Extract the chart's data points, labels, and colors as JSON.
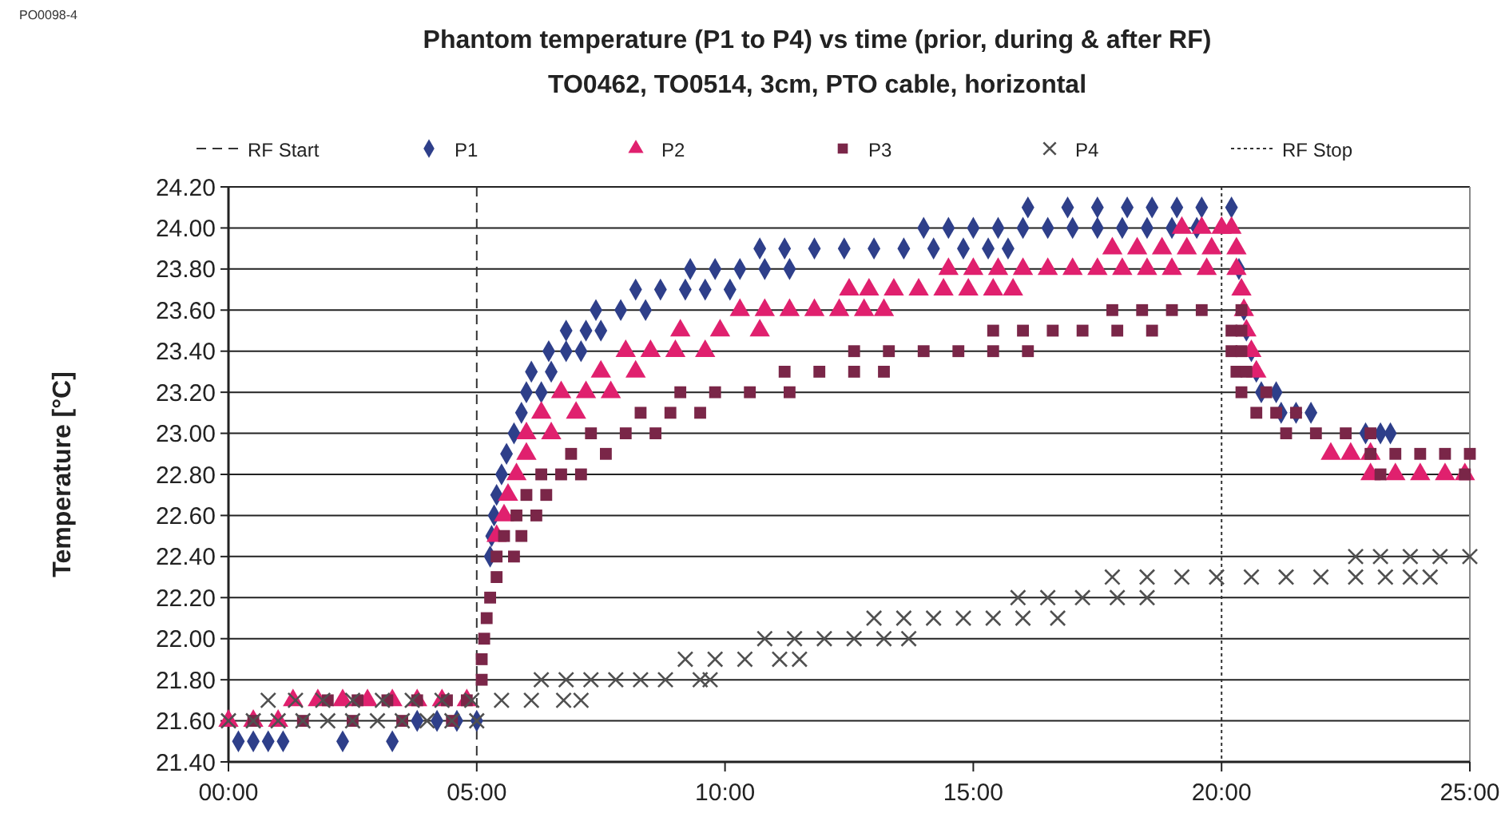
{
  "chart_data": {
    "type": "scatter",
    "title": "Phantom temperature (P1 to P4) vs time (prior, during & after RF)",
    "subtitle": "TO0462, TO0514, 3cm, PTO cable, horizontal",
    "ylabel": "Temperature [°C]",
    "annotations": [
      "PO0098-4"
    ],
    "xlim": [
      0,
      25
    ],
    "xticks": [
      {
        "value": 0,
        "label": "00:00"
      },
      {
        "value": 5,
        "label": "05:00"
      },
      {
        "value": 10,
        "label": "10:00"
      },
      {
        "value": 15,
        "label": "15:00"
      },
      {
        "value": 20,
        "label": "20:00"
      },
      {
        "value": 25,
        "label": "25:00"
      }
    ],
    "ylim": [
      21.4,
      24.2
    ],
    "yticks": [
      {
        "value": 21.4,
        "label": "21.40"
      },
      {
        "value": 21.6,
        "label": "21.60"
      },
      {
        "value": 21.8,
        "label": "21.80"
      },
      {
        "value": 22,
        "label": "22.00"
      },
      {
        "value": 22.2,
        "label": "22.20"
      },
      {
        "value": 22.4,
        "label": "22.40"
      },
      {
        "value": 22.6,
        "label": "22.60"
      },
      {
        "value": 22.8,
        "label": "22.80"
      },
      {
        "value": 23,
        "label": "23.00"
      },
      {
        "value": 23.2,
        "label": "23.20"
      },
      {
        "value": 23.4,
        "label": "23.40"
      },
      {
        "value": 23.6,
        "label": "23.60"
      },
      {
        "value": 23.8,
        "label": "23.80"
      },
      {
        "value": 24,
        "label": "24.00"
      },
      {
        "value": 24.2,
        "label": "24.20"
      }
    ],
    "grid": "y",
    "legend": "top",
    "ref_lines": [
      {
        "axis": "x",
        "value": 5,
        "label": "RF Start",
        "line_style": "dashed",
        "color": "#333333"
      },
      {
        "axis": "x",
        "value": 20,
        "label": "RF Stop",
        "line_style": "dotted",
        "color": "#333333"
      }
    ],
    "series": [
      {
        "name": "P1",
        "color": "#2e3f8a",
        "marker": "diamond",
        "x": [
          0.2,
          0.5,
          0.8,
          1.1,
          2.3,
          3.3,
          3.8,
          4.2,
          4.6,
          5.0,
          5.27,
          5.3,
          5.35,
          5.4,
          5.5,
          5.6,
          5.75,
          5.9,
          6.0,
          6.3,
          6.1,
          6.5,
          6.45,
          6.8,
          7.1,
          6.8,
          7.2,
          7.5,
          7.4,
          7.9,
          8.4,
          8.2,
          8.7,
          9.2,
          9.6,
          10.1,
          9.3,
          9.8,
          10.3,
          10.8,
          11.3,
          10.7,
          11.2,
          11.8,
          12.4,
          13.0,
          13.6,
          14.2,
          14.8,
          15.3,
          15.7,
          14.0,
          14.5,
          15.0,
          15.5,
          16.0,
          16.5,
          17.0,
          17.5,
          18.0,
          18.5,
          19.0,
          19.5,
          16.1,
          16.9,
          17.5,
          18.1,
          18.6,
          19.1,
          19.6,
          20.2,
          20.35,
          20.45,
          20.5,
          20.6,
          20.7,
          20.8,
          21.1,
          21.2,
          21.5,
          21.8,
          22.9,
          23.2,
          23.4
        ],
        "values": [
          21.5,
          21.5,
          21.5,
          21.5,
          21.5,
          21.5,
          21.6,
          21.6,
          21.6,
          21.6,
          22.4,
          22.5,
          22.6,
          22.7,
          22.8,
          22.9,
          23.0,
          23.1,
          23.2,
          23.2,
          23.3,
          23.3,
          23.4,
          23.4,
          23.4,
          23.5,
          23.5,
          23.5,
          23.6,
          23.6,
          23.6,
          23.7,
          23.7,
          23.7,
          23.7,
          23.7,
          23.8,
          23.8,
          23.8,
          23.8,
          23.8,
          23.9,
          23.9,
          23.9,
          23.9,
          23.9,
          23.9,
          23.9,
          23.9,
          23.9,
          23.9,
          24.0,
          24.0,
          24.0,
          24.0,
          24.0,
          24.0,
          24.0,
          24.0,
          24.0,
          24.0,
          24.0,
          24.0,
          24.1,
          24.1,
          24.1,
          24.1,
          24.1,
          24.1,
          24.1,
          24.1,
          23.8,
          23.6,
          23.5,
          23.4,
          23.3,
          23.2,
          23.2,
          23.1,
          23.1,
          23.1,
          23.0,
          23.0,
          23.0
        ]
      },
      {
        "name": "P2",
        "color": "#e0206e",
        "marker": "triangle",
        "x": [
          0,
          0.5,
          1.0,
          1.3,
          1.8,
          2.3,
          2.8,
          3.3,
          3.8,
          4.3,
          4.8,
          5.4,
          5.55,
          5.63,
          5.8,
          6.0,
          6.0,
          6.5,
          6.3,
          7.0,
          6.7,
          7.2,
          7.7,
          7.5,
          8.2,
          8.0,
          8.5,
          9.0,
          9.6,
          9.1,
          9.9,
          10.7,
          10.3,
          10.8,
          11.3,
          11.8,
          12.3,
          12.8,
          13.2,
          12.5,
          12.9,
          13.4,
          13.9,
          14.4,
          14.9,
          15.4,
          15.8,
          14.5,
          15.0,
          15.5,
          16.0,
          16.5,
          17.0,
          17.5,
          18.0,
          18.5,
          19.0,
          19.7,
          17.8,
          18.3,
          18.8,
          19.3,
          19.8,
          20.3,
          19.2,
          19.6,
          20.0,
          20.2,
          20.3,
          20.4,
          20.45,
          20.5,
          20.6,
          20.7,
          22.2,
          22.6,
          23.0,
          23.0,
          23.5,
          24.0,
          24.5,
          24.9
        ],
        "values": [
          21.6,
          21.6,
          21.6,
          21.7,
          21.7,
          21.7,
          21.7,
          21.7,
          21.7,
          21.7,
          21.7,
          22.5,
          22.6,
          22.7,
          22.8,
          22.9,
          23.0,
          23.0,
          23.1,
          23.1,
          23.2,
          23.2,
          23.2,
          23.3,
          23.3,
          23.4,
          23.4,
          23.4,
          23.4,
          23.5,
          23.5,
          23.5,
          23.6,
          23.6,
          23.6,
          23.6,
          23.6,
          23.6,
          23.6,
          23.7,
          23.7,
          23.7,
          23.7,
          23.7,
          23.7,
          23.7,
          23.7,
          23.8,
          23.8,
          23.8,
          23.8,
          23.8,
          23.8,
          23.8,
          23.8,
          23.8,
          23.8,
          23.8,
          23.9,
          23.9,
          23.9,
          23.9,
          23.9,
          23.9,
          24.0,
          24.0,
          24.0,
          24.0,
          23.8,
          23.7,
          23.6,
          23.5,
          23.4,
          23.3,
          22.9,
          22.9,
          22.9,
          22.8,
          22.8,
          22.8,
          22.8,
          22.8
        ]
      },
      {
        "name": "P3",
        "color": "#7a2648",
        "marker": "square",
        "x": [
          0.5,
          1.5,
          2.5,
          3.5,
          4.5,
          2.0,
          2.6,
          3.2,
          3.8,
          4.4,
          4.8,
          5.1,
          5.1,
          5.15,
          5.2,
          5.27,
          5.4,
          5.4,
          5.75,
          5.55,
          5.9,
          5.8,
          6.2,
          6.0,
          6.4,
          6.3,
          6.7,
          7.1,
          6.9,
          7.6,
          7.3,
          8.0,
          8.6,
          8.3,
          8.9,
          9.5,
          9.1,
          9.8,
          10.5,
          11.3,
          11.2,
          11.9,
          12.6,
          13.2,
          12.6,
          13.3,
          14.0,
          14.7,
          15.4,
          16.1,
          15.4,
          16.0,
          16.6,
          17.2,
          17.9,
          18.6,
          17.8,
          18.4,
          19.0,
          19.6,
          20.4,
          20.2,
          20.4,
          20.2,
          20.4,
          20.3,
          20.5,
          20.4,
          20.9,
          20.7,
          21.1,
          21.5,
          21.3,
          21.9,
          22.5,
          23.0,
          23.0,
          23.5,
          24.0,
          24.5,
          25.0,
          23.2,
          24.9
        ],
        "values": [
          21.6,
          21.6,
          21.6,
          21.6,
          21.6,
          21.7,
          21.7,
          21.7,
          21.7,
          21.7,
          21.7,
          21.8,
          21.9,
          22.0,
          22.1,
          22.2,
          22.3,
          22.4,
          22.4,
          22.5,
          22.5,
          22.6,
          22.6,
          22.7,
          22.7,
          22.8,
          22.8,
          22.8,
          22.9,
          22.9,
          23.0,
          23.0,
          23.0,
          23.1,
          23.1,
          23.1,
          23.2,
          23.2,
          23.2,
          23.2,
          23.3,
          23.3,
          23.3,
          23.3,
          23.4,
          23.4,
          23.4,
          23.4,
          23.4,
          23.4,
          23.5,
          23.5,
          23.5,
          23.5,
          23.5,
          23.5,
          23.6,
          23.6,
          23.6,
          23.6,
          23.6,
          23.5,
          23.5,
          23.4,
          23.4,
          23.3,
          23.3,
          23.2,
          23.2,
          23.1,
          23.1,
          23.1,
          23.0,
          23.0,
          23.0,
          23.0,
          22.9,
          22.9,
          22.9,
          22.9,
          22.9,
          22.8,
          22.8
        ]
      },
      {
        "name": "P4",
        "color": "#505050",
        "marker": "cross",
        "x": [
          0,
          0.5,
          1,
          1.5,
          2,
          2.5,
          3,
          3.5,
          4,
          4.5,
          5.0,
          0.8,
          1.35,
          1.9,
          2.5,
          3.1,
          3.7,
          4.3,
          4.9,
          5.5,
          6.1,
          6.75,
          7.1,
          6.3,
          6.8,
          7.3,
          7.8,
          8.3,
          8.8,
          9.5,
          9.7,
          9.2,
          9.8,
          10.4,
          11.1,
          11.5,
          10.8,
          11.4,
          12.0,
          12.6,
          13.2,
          13.7,
          13.0,
          13.6,
          14.2,
          14.8,
          15.4,
          16.0,
          16.7,
          15.9,
          16.5,
          17.2,
          17.9,
          18.5,
          17.8,
          18.5,
          19.2,
          19.9,
          20.6,
          21.3,
          22.0,
          22.7,
          23.3,
          23.8,
          24.2,
          22.7,
          23.2,
          23.8,
          24.4,
          25.0
        ],
        "values": [
          21.6,
          21.6,
          21.6,
          21.6,
          21.6,
          21.6,
          21.6,
          21.6,
          21.6,
          21.6,
          21.6,
          21.7,
          21.7,
          21.7,
          21.7,
          21.7,
          21.7,
          21.7,
          21.7,
          21.7,
          21.7,
          21.7,
          21.7,
          21.8,
          21.8,
          21.8,
          21.8,
          21.8,
          21.8,
          21.8,
          21.8,
          21.9,
          21.9,
          21.9,
          21.9,
          21.9,
          22.0,
          22.0,
          22.0,
          22.0,
          22.0,
          22.0,
          22.1,
          22.1,
          22.1,
          22.1,
          22.1,
          22.1,
          22.1,
          22.2,
          22.2,
          22.2,
          22.2,
          22.2,
          22.3,
          22.3,
          22.3,
          22.3,
          22.3,
          22.3,
          22.3,
          22.3,
          22.3,
          22.3,
          22.3,
          22.4,
          22.4,
          22.4,
          22.4,
          22.4
        ]
      }
    ]
  }
}
